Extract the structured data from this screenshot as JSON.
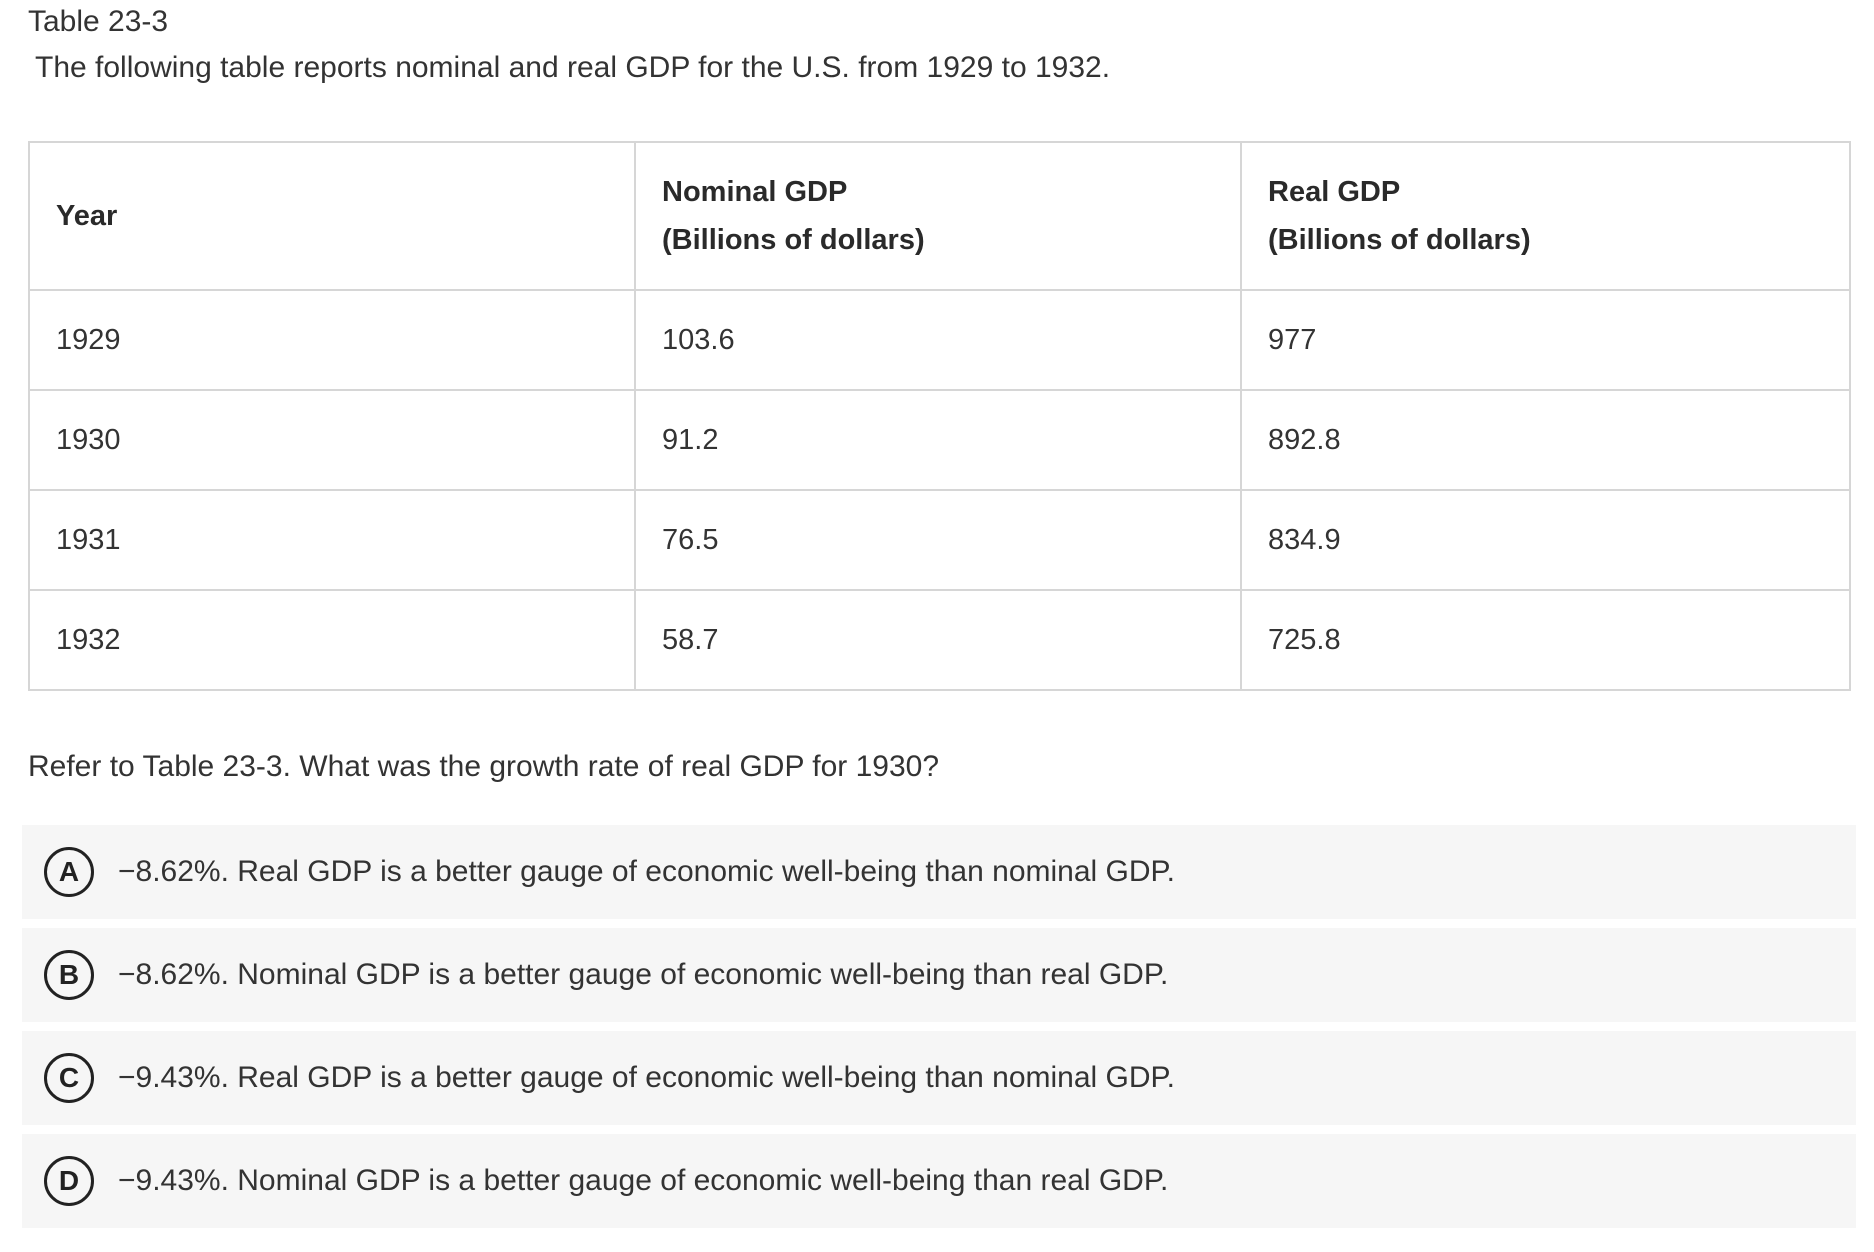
{
  "title": "Table 23-3",
  "intro": "The following table reports nominal and real GDP for the U.S. from 1929 to 1932.",
  "table": {
    "headers": [
      {
        "line1": "Year",
        "line2": ""
      },
      {
        "line1": "Nominal GDP",
        "line2": "(Billions of dollars)"
      },
      {
        "line1": "Real GDP",
        "line2": "(Billions of dollars)"
      }
    ],
    "rows": [
      [
        "1929",
        "103.6",
        "977"
      ],
      [
        "1930",
        "91.2",
        "892.8"
      ],
      [
        "1931",
        "76.5",
        "834.9"
      ],
      [
        "1932",
        "58.7",
        "725.8"
      ]
    ]
  },
  "question": "Refer to Table 23-3. What was the growth rate of real GDP for 1930?",
  "options": [
    {
      "letter": "A",
      "text": "−8.62%. Real GDP is a better gauge of economic well-being than nominal GDP."
    },
    {
      "letter": "B",
      "text": "−8.62%. Nominal GDP is a better gauge of economic well-being than real GDP."
    },
    {
      "letter": "C",
      "text": "−9.43%. Real GDP is a better gauge of economic well-being than nominal GDP."
    },
    {
      "letter": "D",
      "text": "−9.43%. Nominal GDP is a better gauge of economic well-being than real GDP."
    }
  ]
}
